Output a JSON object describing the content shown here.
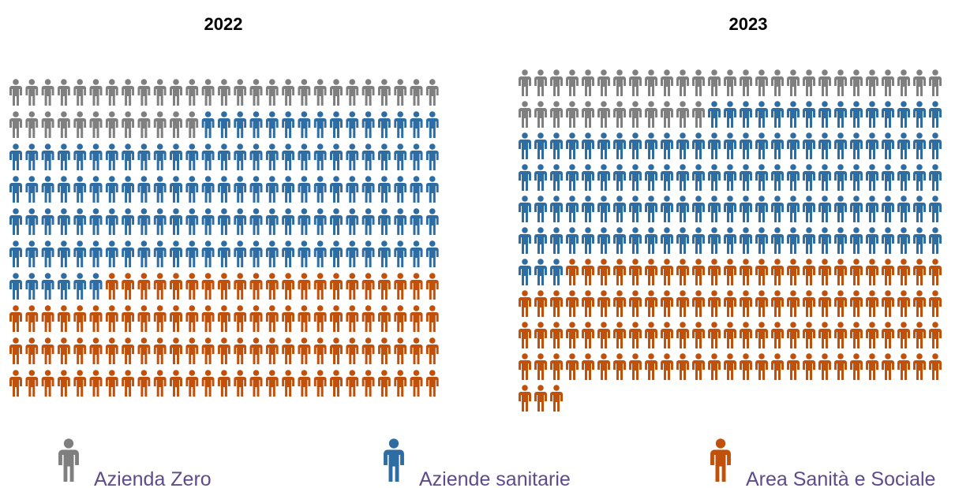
{
  "legend": [
    {
      "name": "Azienda Zero",
      "color": "#7f7f7f"
    },
    {
      "name": "Aziende sanitarie",
      "color": "#2e6da4"
    },
    {
      "name": "Area Sanità e Sociale",
      "color": "#c0500a"
    }
  ],
  "chart_data": [
    {
      "type": "waffle",
      "title": "2022",
      "values": [
        39,
        129,
        102
      ]
    },
    {
      "type": "waffle",
      "title": "2023",
      "values": [
        39,
        126,
        108
      ]
    }
  ]
}
